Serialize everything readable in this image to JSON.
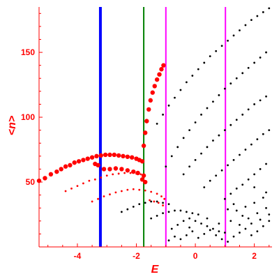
{
  "chart_data": {
    "type": "scatter",
    "xlabel": "E",
    "ylabel": "<n>",
    "xlim": [
      -5.3,
      2.6
    ],
    "ylim": [
      0,
      185
    ],
    "xticks": [
      -4,
      -2,
      0,
      2
    ],
    "yticks": [
      50,
      100,
      150
    ],
    "xtick_labels": [
      "-4",
      "-2",
      "0",
      "2"
    ],
    "ytick_labels": [
      "50",
      "100",
      "150"
    ],
    "grid": false,
    "axis_color": "#ff0000",
    "vertical_lines": [
      {
        "x": -3.22,
        "color": "#0000ff",
        "style": "thick"
      },
      {
        "x": -1.75,
        "color": "#008000",
        "style": "medium"
      },
      {
        "x": -1.0,
        "color": "#ff00ff",
        "style": "medium"
      },
      {
        "x": 1.02,
        "color": "#ff00ff",
        "style": "medium"
      }
    ],
    "series": [
      {
        "color": "#ff0000",
        "marker": "large-dot",
        "points": [
          [
            -5.3,
            51
          ],
          [
            -5.1,
            53
          ],
          [
            -4.9,
            56
          ],
          [
            -4.7,
            58
          ],
          [
            -4.55,
            60
          ],
          [
            -4.4,
            62
          ],
          [
            -4.25,
            63
          ],
          [
            -4.1,
            65
          ],
          [
            -3.95,
            66
          ],
          [
            -3.8,
            67
          ],
          [
            -3.65,
            68
          ],
          [
            -3.5,
            69
          ],
          [
            -3.35,
            70
          ],
          [
            -3.2,
            70.5
          ],
          [
            -3.05,
            71
          ],
          [
            -2.9,
            71
          ],
          [
            -2.75,
            71
          ],
          [
            -2.6,
            70.5
          ],
          [
            -2.45,
            70
          ],
          [
            -2.3,
            69.5
          ],
          [
            -2.15,
            69
          ],
          [
            -2.0,
            68
          ],
          [
            -1.9,
            67
          ],
          [
            -1.8,
            66
          ],
          [
            -3.1,
            60
          ],
          [
            -2.9,
            60
          ],
          [
            -2.7,
            60.5
          ],
          [
            -2.5,
            60
          ],
          [
            -2.3,
            59
          ],
          [
            -2.1,
            58
          ],
          [
            -1.95,
            57
          ],
          [
            -3.4,
            64
          ],
          [
            -3.3,
            63
          ],
          [
            -1.75,
            78
          ],
          [
            -1.7,
            88
          ],
          [
            -1.65,
            97
          ],
          [
            -1.58,
            106
          ],
          [
            -1.52,
            113
          ],
          [
            -1.45,
            119
          ],
          [
            -1.38,
            124
          ],
          [
            -1.3,
            129
          ],
          [
            -1.22,
            133
          ],
          [
            -1.15,
            137
          ],
          [
            -1.08,
            140
          ],
          [
            -1.8,
            52
          ],
          [
            -1.7,
            50
          ],
          [
            -1.75,
            55
          ]
        ]
      },
      {
        "color": "#ff0000",
        "marker": "dot",
        "points": [
          [
            -4.4,
            43
          ],
          [
            -4.2,
            45
          ],
          [
            -4.0,
            47
          ],
          [
            -3.8,
            49
          ],
          [
            -3.6,
            51
          ],
          [
            -3.4,
            52
          ],
          [
            -3.2,
            53.5
          ],
          [
            -3.0,
            55
          ],
          [
            -2.8,
            56
          ],
          [
            -2.6,
            56.5
          ],
          [
            -2.4,
            57
          ],
          [
            -2.2,
            57
          ],
          [
            -2.0,
            56.5
          ],
          [
            -1.85,
            56
          ],
          [
            -3.5,
            35
          ],
          [
            -3.3,
            37
          ],
          [
            -3.1,
            39
          ],
          [
            -2.9,
            40.5
          ],
          [
            -2.7,
            42
          ],
          [
            -2.5,
            43
          ],
          [
            -2.3,
            44
          ],
          [
            -2.1,
            44.5
          ],
          [
            -1.9,
            44
          ],
          [
            -1.7,
            43.5
          ],
          [
            -1.5,
            42.5
          ],
          [
            -1.3,
            41
          ],
          [
            -1.15,
            39
          ],
          [
            -1.05,
            37
          ],
          [
            -1.4,
            35
          ],
          [
            -1.25,
            34
          ],
          [
            -1.1,
            32
          ],
          [
            -1.55,
            36
          ]
        ]
      },
      {
        "color": "#000000",
        "marker": "dot",
        "points": [
          [
            -1.3,
            95
          ],
          [
            -1.1,
            102
          ],
          [
            -0.9,
            109
          ],
          [
            -0.7,
            115
          ],
          [
            -0.5,
            121
          ],
          [
            -0.3,
            127
          ],
          [
            -0.1,
            132
          ],
          [
            0.1,
            137
          ],
          [
            0.3,
            142
          ],
          [
            0.5,
            147
          ],
          [
            0.7,
            151
          ],
          [
            0.9,
            155
          ],
          [
            1.1,
            159
          ],
          [
            1.3,
            163
          ],
          [
            1.5,
            167
          ],
          [
            1.7,
            171
          ],
          [
            1.9,
            175
          ],
          [
            2.1,
            178
          ],
          [
            2.3,
            181
          ],
          [
            2.5,
            184
          ],
          [
            -1.0,
            62
          ],
          [
            -0.8,
            70
          ],
          [
            -0.6,
            77
          ],
          [
            -0.4,
            84
          ],
          [
            -0.2,
            90
          ],
          [
            0.0,
            96
          ],
          [
            0.2,
            102
          ],
          [
            0.4,
            107
          ],
          [
            0.6,
            112
          ],
          [
            0.8,
            117
          ],
          [
            1.0,
            122
          ],
          [
            1.2,
            126
          ],
          [
            1.4,
            130
          ],
          [
            1.6,
            134
          ],
          [
            1.8,
            138
          ],
          [
            2.0,
            142
          ],
          [
            2.2,
            146
          ],
          [
            2.4,
            150
          ],
          [
            -0.4,
            56
          ],
          [
            -0.2,
            62
          ],
          [
            0.0,
            67
          ],
          [
            0.2,
            72
          ],
          [
            0.4,
            77
          ],
          [
            0.6,
            82
          ],
          [
            0.8,
            86
          ],
          [
            1.0,
            90
          ],
          [
            1.2,
            94
          ],
          [
            1.4,
            98
          ],
          [
            1.6,
            102
          ],
          [
            1.8,
            106
          ],
          [
            2.0,
            110
          ],
          [
            2.2,
            113
          ],
          [
            2.4,
            116
          ],
          [
            0.3,
            46
          ],
          [
            0.5,
            51
          ],
          [
            0.7,
            55
          ],
          [
            0.9,
            59
          ],
          [
            1.1,
            63
          ],
          [
            1.3,
            67
          ],
          [
            1.5,
            71
          ],
          [
            1.7,
            75
          ],
          [
            1.9,
            79
          ],
          [
            2.1,
            83
          ],
          [
            2.3,
            87
          ],
          [
            2.5,
            90
          ],
          [
            1.0,
            37
          ],
          [
            1.2,
            41
          ],
          [
            1.4,
            45
          ],
          [
            1.6,
            48
          ],
          [
            1.8,
            52
          ],
          [
            2.0,
            56
          ],
          [
            2.2,
            60
          ],
          [
            2.4,
            64
          ],
          [
            -2.5,
            27
          ],
          [
            -2.3,
            29
          ],
          [
            -2.1,
            31
          ],
          [
            -1.9,
            33
          ],
          [
            -1.7,
            34
          ],
          [
            -1.5,
            35
          ],
          [
            -1.3,
            35
          ],
          [
            -1.1,
            34
          ],
          [
            -0.9,
            33
          ],
          [
            -1.5,
            22
          ],
          [
            -1.3,
            24
          ],
          [
            -1.1,
            26
          ],
          [
            -0.9,
            27
          ],
          [
            -0.7,
            28
          ],
          [
            -0.5,
            28
          ],
          [
            -0.3,
            27
          ],
          [
            -0.1,
            26
          ],
          [
            0.1,
            25
          ],
          [
            -0.8,
            14
          ],
          [
            -0.6,
            17
          ],
          [
            -0.4,
            20
          ],
          [
            -0.2,
            22
          ],
          [
            0.0,
            20
          ],
          [
            0.2,
            18
          ],
          [
            0.4,
            16
          ],
          [
            0.6,
            14
          ],
          [
            0.8,
            12
          ],
          [
            1.0,
            11
          ],
          [
            -0.9,
            5
          ],
          [
            -0.7,
            8
          ],
          [
            -0.5,
            6
          ],
          [
            -0.3,
            9
          ],
          [
            -0.1,
            12
          ],
          [
            0.1,
            7
          ],
          [
            0.3,
            10
          ],
          [
            0.5,
            13
          ],
          [
            0.7,
            9
          ],
          [
            0.9,
            6
          ],
          [
            1.1,
            4
          ],
          [
            1.3,
            8
          ],
          [
            1.5,
            11
          ],
          [
            1.7,
            14
          ],
          [
            1.9,
            9
          ],
          [
            2.1,
            12
          ],
          [
            2.3,
            16
          ],
          [
            2.5,
            20
          ],
          [
            1.2,
            20
          ],
          [
            1.5,
            17
          ],
          [
            1.8,
            22
          ],
          [
            2.1,
            26
          ],
          [
            2.4,
            30
          ],
          [
            1.4,
            28
          ],
          [
            1.7,
            31
          ],
          [
            2.0,
            34
          ],
          [
            2.3,
            38
          ],
          [
            1.6,
            24
          ],
          [
            2.2,
            21
          ],
          [
            2.5,
            25
          ],
          [
            -0.2,
            15
          ],
          [
            0.4,
            22
          ],
          [
            0.8,
            18
          ],
          [
            1.9,
            18
          ],
          [
            2.4,
            42
          ],
          [
            2.0,
            46
          ],
          [
            1.3,
            33
          ],
          [
            1.1,
            29
          ]
        ]
      }
    ]
  }
}
